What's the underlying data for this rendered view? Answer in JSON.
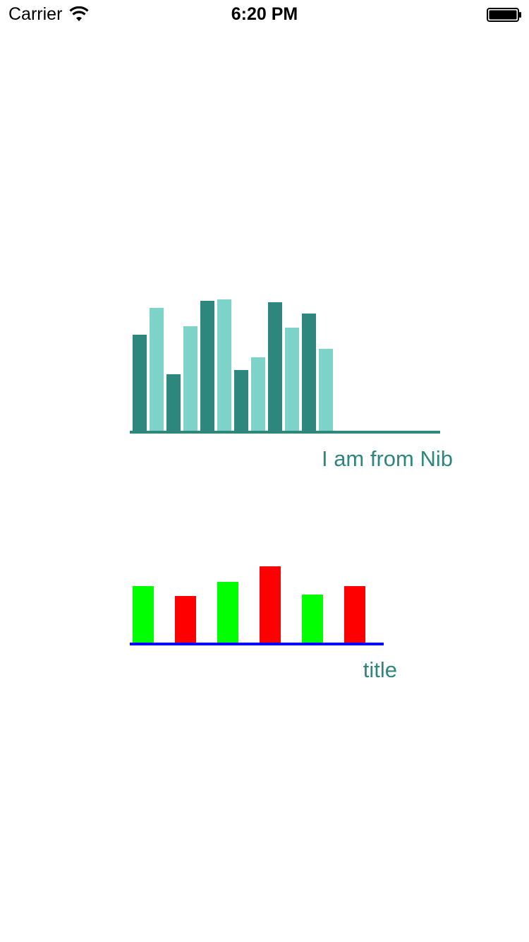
{
  "status_bar": {
    "carrier": "Carrier",
    "time": "6:20 PM",
    "wifi_icon": "wifi-icon",
    "battery_icon": "battery-icon"
  },
  "chart_data": [
    {
      "type": "bar",
      "title": "I am from Nib",
      "values": [
        68,
        87,
        40,
        74,
        92,
        93,
        43,
        52,
        91,
        73,
        83,
        58
      ],
      "bar_colors": [
        "#2e877d",
        "#7ed3c9"
      ],
      "axis_color": "#2e877d",
      "title_color": "#2e877d",
      "ylim": [
        0,
        100
      ]
    },
    {
      "type": "bar",
      "title": "title",
      "values": [
        40,
        33,
        43,
        54,
        34,
        40
      ],
      "bar_colors": [
        "#00ff00",
        "#ff0000"
      ],
      "axis_color": "#0000ff",
      "title_color": "#2e877d",
      "ylim": [
        0,
        100
      ]
    }
  ]
}
